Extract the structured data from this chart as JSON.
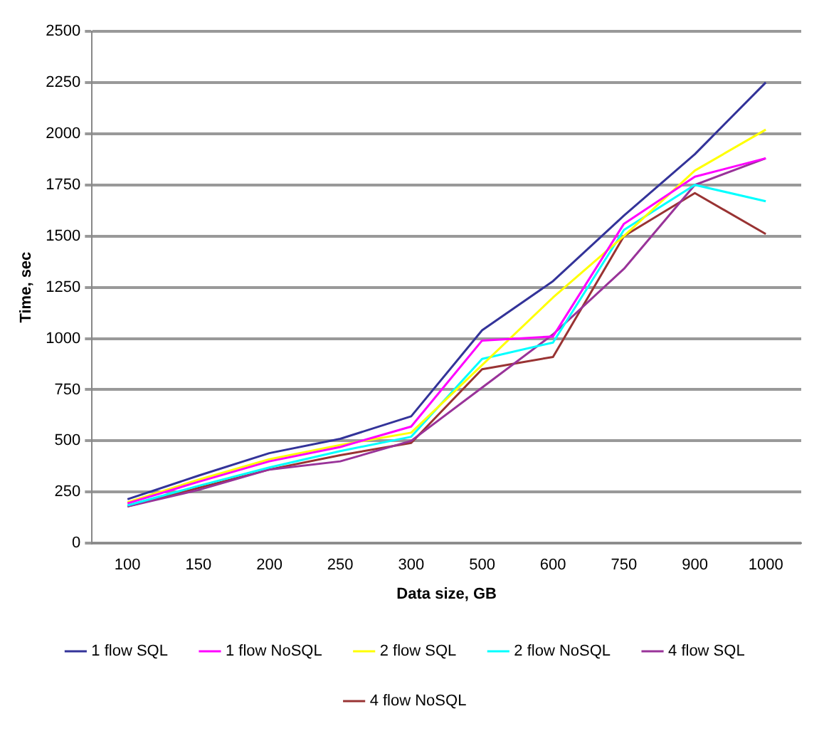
{
  "chart_data": {
    "type": "line",
    "xlabel": "Data size, GB",
    "ylabel": "Time, sec",
    "categories": [
      "100",
      "150",
      "200",
      "250",
      "300",
      "500",
      "600",
      "750",
      "900",
      "1000"
    ],
    "series": [
      {
        "name": "1 flow SQL",
        "color": "#333399",
        "values": [
          215,
          330,
          440,
          510,
          620,
          1040,
          1280,
          1600,
          1900,
          2250
        ]
      },
      {
        "name": "1 flow NoSQL",
        "color": "#ff00ff",
        "values": [
          195,
          300,
          400,
          470,
          570,
          990,
          1010,
          1560,
          1790,
          1880
        ]
      },
      {
        "name": "2 flow SQL",
        "color": "#ffff00",
        "values": [
          200,
          310,
          410,
          480,
          540,
          870,
          1200,
          1500,
          1820,
          2020
        ]
      },
      {
        "name": "2 flow NoSQL",
        "color": "#00ffff",
        "values": [
          185,
          280,
          370,
          450,
          520,
          900,
          980,
          1530,
          1750,
          1670
        ]
      },
      {
        "name": "4 flow SQL",
        "color": "#993399",
        "values": [
          180,
          260,
          360,
          400,
          500,
          760,
          1020,
          1340,
          1750,
          1880
        ]
      },
      {
        "name": "4 flow NoSQL",
        "color": "#993333",
        "values": [
          180,
          270,
          360,
          430,
          490,
          850,
          910,
          1500,
          1710,
          1510
        ]
      }
    ],
    "ylim": [
      0,
      2500
    ],
    "yticks": [
      0,
      250,
      500,
      750,
      1000,
      1250,
      1500,
      1750,
      2000,
      2250,
      2500
    ],
    "grid": "y",
    "legend": "bottom",
    "marker": "none",
    "line_style": "solid"
  }
}
